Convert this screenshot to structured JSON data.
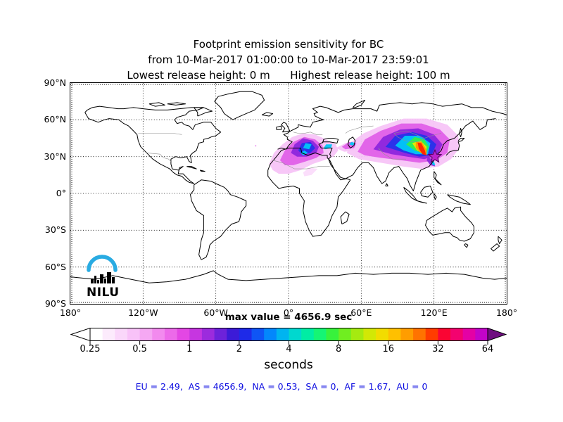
{
  "titles": {
    "line1": "Footprint emission sensitivity for BC",
    "line2": "from 10-Mar-2017 01:00:00 to 10-Mar-2017 23:59:01",
    "line3": "Lowest release height: 0 m      Highest release height: 100 m"
  },
  "colorbar": {
    "max_value_label": "max value = 4656.9 sec",
    "unit_label": "seconds",
    "tick_labels": [
      "0.25",
      "0.5",
      "1",
      "2",
      "4",
      "8",
      "16",
      "32",
      "64"
    ],
    "left_arrow_color": "#ffffff",
    "right_arrow_color": "#6f0e80",
    "segment_colors": [
      "#ffffff",
      "#fcebfc",
      "#fad7fa",
      "#f8c2f8",
      "#f5a8f3",
      "#f28aee",
      "#ec6ae9",
      "#e347e4",
      "#c636e0",
      "#9c2bdd",
      "#6d22da",
      "#3c1bd7",
      "#1e2ae8",
      "#0f55f5",
      "#0387fc",
      "#00b4f0",
      "#00d8cf",
      "#00eda4",
      "#15f574",
      "#38f23c",
      "#70ee20",
      "#a5ea10",
      "#d2e805",
      "#f2dc00",
      "#ffc000",
      "#ff9d00",
      "#ff7300",
      "#ff3c00",
      "#fa0533",
      "#f3026f",
      "#e401a5",
      "#c204c9"
    ]
  },
  "footer": {
    "text": "EU = 2.49,  AS = 4656.9,  NA = 0.53,  SA = 0,  AF = 1.67,  AU = 0",
    "color": "#0a0ae0"
  },
  "logo": {
    "text": "NILU",
    "arc_color": "#29abe2"
  },
  "chart_data": {
    "type": "heatmap",
    "title": "Footprint emission sensitivity for BC",
    "species": "BC",
    "time_start": "10-Mar-2017 01:00:00",
    "time_end": "10-Mar-2017 23:59:01",
    "lowest_release_height_m": 0,
    "highest_release_height_m": 100,
    "max_value_sec": 4656.9,
    "units": "seconds",
    "colorbar_scale": [
      0.25,
      0.5,
      1,
      2,
      4,
      8,
      16,
      32,
      64
    ],
    "x_axis": {
      "label_ticks": [
        "180°",
        "120°W",
        "60°W",
        "0°",
        "60°E",
        "120°E",
        "180°"
      ],
      "tick_lons": [
        -180,
        -120,
        -60,
        0,
        60,
        120,
        180
      ],
      "range_deg": [
        -180,
        180
      ]
    },
    "y_axis": {
      "label_ticks": [
        "90°N",
        "60°N",
        "30°N",
        "0°",
        "30°S",
        "60°S",
        "90°S"
      ],
      "tick_lats": [
        90,
        60,
        30,
        0,
        -30,
        -60,
        -90
      ],
      "range_deg": [
        -90,
        90
      ]
    },
    "grid": "dotted",
    "region_contributions": {
      "EU": 2.49,
      "AS": 4656.9,
      "NA": 0.53,
      "SA": 0,
      "AF": 1.67,
      "AU": 0
    },
    "release_point": {
      "lon": 120.8,
      "lat": 30.0,
      "marker": "star",
      "color": "#bb22cc"
    },
    "plume_bands": [
      {
        "region": "Asia",
        "level_sec": 0.25,
        "color": "#f7c4f7",
        "pts": [
          [
            48,
            33
          ],
          [
            52,
            42
          ],
          [
            62,
            49
          ],
          [
            76,
            55
          ],
          [
            95,
            61
          ],
          [
            114,
            61
          ],
          [
            131,
            56
          ],
          [
            140,
            47
          ],
          [
            141,
            37
          ],
          [
            134,
            28
          ],
          [
            124,
            22
          ],
          [
            110,
            20
          ],
          [
            94,
            22
          ],
          [
            76,
            25
          ],
          [
            58,
            28
          ]
        ]
      },
      {
        "region": "Asia",
        "level_sec": 0.5,
        "color": "#e060e8",
        "pts": [
          [
            57,
            34
          ],
          [
            63,
            44
          ],
          [
            76,
            51
          ],
          [
            93,
            57
          ],
          [
            110,
            57
          ],
          [
            125,
            52
          ],
          [
            133,
            44
          ],
          [
            131,
            33
          ],
          [
            122,
            27
          ],
          [
            108,
            25
          ],
          [
            93,
            27
          ],
          [
            76,
            29
          ],
          [
            63,
            31
          ]
        ]
      },
      {
        "region": "Asia",
        "level_sec": 1,
        "color": "#8c26dd",
        "pts": [
          [
            70,
            36
          ],
          [
            78,
            46
          ],
          [
            92,
            52
          ],
          [
            107,
            53
          ],
          [
            120,
            48
          ],
          [
            127,
            40
          ],
          [
            123,
            31
          ],
          [
            112,
            28
          ],
          [
            98,
            30
          ],
          [
            85,
            32
          ]
        ]
      },
      {
        "region": "Asia",
        "level_sec": 2,
        "color": "#2633ea",
        "pts": [
          [
            80,
            38
          ],
          [
            88,
            47
          ],
          [
            102,
            50
          ],
          [
            114,
            47
          ],
          [
            122,
            40
          ],
          [
            118,
            31
          ],
          [
            108,
            30
          ],
          [
            96,
            33
          ]
        ]
      },
      {
        "region": "Asia",
        "level_sec": 4,
        "color": "#00c8f7",
        "pts": [
          [
            88,
            39
          ],
          [
            96,
            47
          ],
          [
            108,
            47
          ],
          [
            117,
            41
          ],
          [
            115,
            32
          ],
          [
            105,
            32
          ],
          [
            95,
            35
          ]
        ]
      },
      {
        "region": "Asia",
        "level_sec": 8,
        "color": "#30f04c",
        "pts": [
          [
            97,
            40
          ],
          [
            104,
            46
          ],
          [
            112,
            44
          ],
          [
            116,
            38
          ],
          [
            113,
            32
          ],
          [
            104,
            35
          ]
        ]
      },
      {
        "region": "Asia",
        "level_sec": 16,
        "color": "#f0e005",
        "pts": [
          [
            102,
            41
          ],
          [
            109,
            43
          ],
          [
            114,
            38
          ],
          [
            113,
            32
          ],
          [
            106,
            35
          ]
        ]
      },
      {
        "region": "Asia",
        "level_sec": 32,
        "color": "#ff9800",
        "pts": [
          [
            105,
            42
          ],
          [
            110,
            42
          ],
          [
            114,
            35
          ],
          [
            114,
            31
          ],
          [
            109,
            33
          ],
          [
            105,
            37
          ]
        ]
      },
      {
        "region": "Asia",
        "level_sec": 64,
        "color": "#ff2000",
        "pts": [
          [
            106.5,
            41.5
          ],
          [
            109.5,
            41
          ],
          [
            112.5,
            35
          ],
          [
            113.5,
            31
          ],
          [
            110.5,
            32
          ],
          [
            107.5,
            36.5
          ]
        ]
      },
      {
        "region": "Asia-coast-tail",
        "level_sec": 1,
        "color": "#8c26dd",
        "pts": [
          [
            115,
            30
          ],
          [
            119,
            27
          ],
          [
            121,
            22
          ],
          [
            117,
            23
          ],
          [
            114,
            27
          ]
        ]
      },
      {
        "region": "Asia-coast-tail",
        "level_sec": 4,
        "color": "#00c8f7",
        "pts": [
          [
            118,
            26
          ],
          [
            120,
            26
          ],
          [
            121,
            23
          ],
          [
            119,
            23
          ]
        ]
      },
      {
        "region": "Europe",
        "level_sec": 0.25,
        "color": "#f7c4f7",
        "pts": [
          [
            -16,
            24
          ],
          [
            -12,
            33
          ],
          [
            -5,
            40
          ],
          [
            3,
            46
          ],
          [
            12,
            49
          ],
          [
            22,
            48
          ],
          [
            31,
            44
          ],
          [
            39,
            40
          ],
          [
            41,
            35
          ],
          [
            37,
            30
          ],
          [
            29,
            27
          ],
          [
            20,
            24
          ],
          [
            10,
            19
          ],
          [
            0,
            16
          ],
          [
            -8,
            16
          ],
          [
            -13,
            19
          ]
        ]
      },
      {
        "region": "Europe",
        "level_sec": 0.5,
        "color": "#e060e8",
        "pts": [
          [
            -7,
            27
          ],
          [
            -3,
            35
          ],
          [
            4,
            42
          ],
          [
            13,
            46
          ],
          [
            22,
            44
          ],
          [
            28,
            39
          ],
          [
            29,
            33
          ],
          [
            23,
            29
          ],
          [
            14,
            26
          ],
          [
            4,
            23
          ],
          [
            -3,
            23
          ]
        ]
      },
      {
        "region": "Europe",
        "level_sec": 1,
        "color": "#8c26dd",
        "pts": [
          [
            2,
            33
          ],
          [
            5,
            40
          ],
          [
            12,
            45
          ],
          [
            20,
            43
          ],
          [
            25,
            38
          ],
          [
            23,
            33
          ],
          [
            15,
            30
          ],
          [
            7,
            30
          ]
        ]
      },
      {
        "region": "Europe",
        "level_sec": 2,
        "color": "#2633ea",
        "pts": [
          [
            8,
            35
          ],
          [
            11,
            41
          ],
          [
            18,
            42
          ],
          [
            22,
            37
          ],
          [
            18,
            33
          ],
          [
            11,
            32
          ]
        ]
      },
      {
        "region": "Europe",
        "level_sec": 4,
        "color": "#00c8f7",
        "pts": [
          [
            12,
            37
          ],
          [
            14,
            41
          ],
          [
            19,
            40
          ],
          [
            17,
            36
          ]
        ]
      },
      {
        "region": "Europe",
        "level_sec": 4,
        "color": "#00c8f7",
        "pts": [
          [
            10,
            33
          ],
          [
            13,
            35
          ],
          [
            16,
            33
          ],
          [
            12,
            31
          ]
        ]
      },
      {
        "region": "Anatolia",
        "level_sec": 4,
        "color": "#00c8f7",
        "pts": [
          [
            29,
            37
          ],
          [
            31,
            40
          ],
          [
            36,
            40
          ],
          [
            35,
            37
          ],
          [
            30,
            36
          ]
        ]
      },
      {
        "region": "WestAsia",
        "level_sec": 0.25,
        "color": "#f7c4f7",
        "pts": [
          [
            39,
            37
          ],
          [
            47,
            41
          ],
          [
            55,
            43
          ],
          [
            60,
            40
          ],
          [
            55,
            35
          ],
          [
            46,
            34
          ]
        ]
      },
      {
        "region": "WestAsia",
        "level_sec": 0.5,
        "color": "#e060e8",
        "pts": [
          [
            44,
            38
          ],
          [
            50,
            42
          ],
          [
            56,
            41
          ],
          [
            54,
            37
          ],
          [
            47,
            36
          ]
        ]
      },
      {
        "region": "Caspian",
        "level_sec": 4,
        "color": "#00c8f7",
        "pts": [
          [
            50,
            40
          ],
          [
            52,
            42
          ],
          [
            55,
            41
          ],
          [
            53,
            39
          ]
        ]
      },
      {
        "region": "NorthAfrica",
        "level_sec": 0.25,
        "color": "#fbdcfb",
        "pts": [
          [
            12,
            17
          ],
          [
            17,
            21
          ],
          [
            24,
            20
          ],
          [
            19,
            15
          ],
          [
            13,
            14
          ]
        ]
      },
      {
        "region": "Atlantic-spot",
        "level_sec": 0.5,
        "color": "#e060e8",
        "pts": [
          [
            -27.8,
            38.8
          ],
          [
            -27,
            39.3
          ],
          [
            -26.4,
            38.7
          ],
          [
            -27.2,
            38.2
          ]
        ]
      }
    ]
  }
}
